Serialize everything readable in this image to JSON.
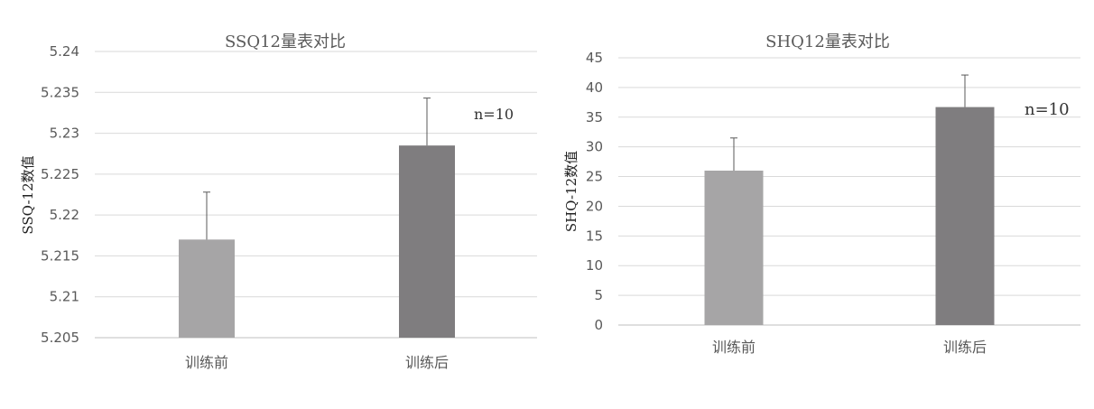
{
  "chart_data": [
    {
      "type": "bar",
      "title": "SSQ12量表对比",
      "ylabel": "SSQ-12数值",
      "xlabel": "",
      "categories": [
        "训练前",
        "训练后"
      ],
      "values": [
        5.217,
        5.2285
      ],
      "error": [
        0.0058,
        0.0058
      ],
      "ylim": [
        5.205,
        5.24
      ],
      "yticks": [
        "5.205",
        "5.21",
        "5.215",
        "5.22",
        "5.225",
        "5.23",
        "5.235",
        "5.24"
      ],
      "bar_colors": [
        "#a6a5a6",
        "#7f7d7f"
      ],
      "grid": true,
      "annotation": "n=10"
    },
    {
      "type": "bar",
      "title": "SHQ12量表对比",
      "ylabel": "SHQ-12数值",
      "xlabel": "",
      "categories": [
        "训练前",
        "训练后"
      ],
      "values": [
        26,
        36.7
      ],
      "error": [
        5.5,
        5.4
      ],
      "ylim": [
        0,
        45
      ],
      "yticks": [
        "0",
        "5",
        "10",
        "15",
        "20",
        "25",
        "30",
        "35",
        "40",
        "45"
      ],
      "bar_colors": [
        "#a6a5a6",
        "#7f7d7f"
      ],
      "grid": true,
      "annotation": "n=10"
    }
  ]
}
